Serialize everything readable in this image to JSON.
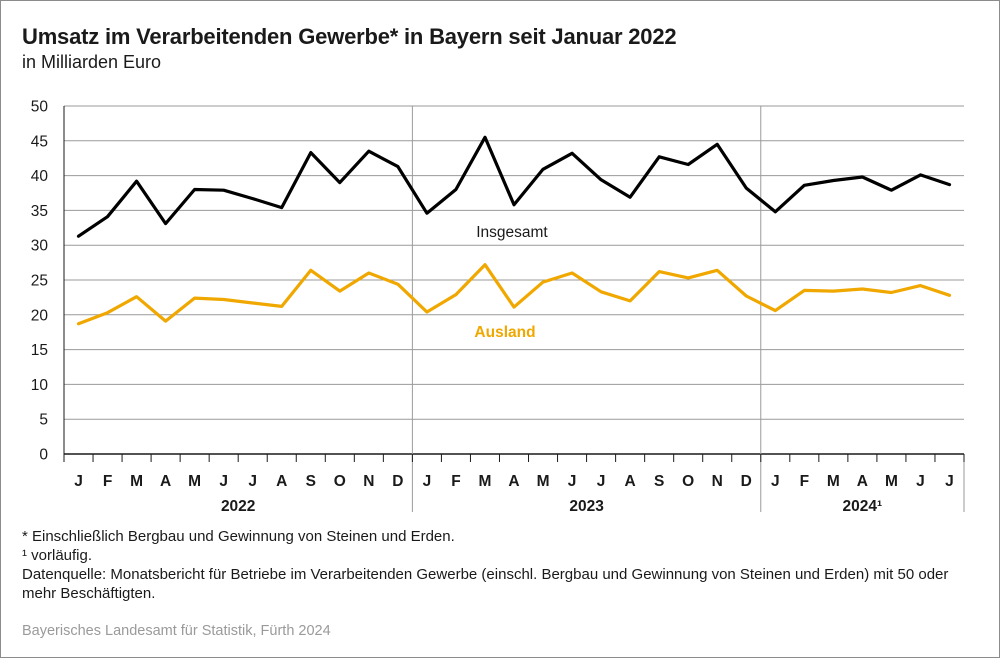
{
  "header": {
    "title": "Umsatz im Verarbeitenden Gewerbe* in Bayern seit Januar 2022",
    "subtitle": "in Milliarden Euro"
  },
  "footnotes": {
    "note1": "* Einschließlich Bergbau und Gewinnung von Steinen und Erden.",
    "note2": "¹  vorläufig.",
    "note3": "Datenquelle: Monatsbericht für Betriebe im Verarbeitenden Gewerbe (einschl. Bergbau und Gewinnung von Steinen und Erden) mit 50 oder mehr Beschäftigten."
  },
  "credit": "Bayerisches Landesamt für Statistik, Fürth 2024",
  "colors": {
    "insgesamt": "#000000",
    "ausland": "#f0a800",
    "grid": "#9a9a9a"
  },
  "chart_data": {
    "type": "line",
    "title": "Umsatz im Verarbeitenden Gewerbe* in Bayern seit Januar 2022",
    "subtitle": "in Milliarden Euro",
    "ylim": [
      0,
      50
    ],
    "yticks": [
      0,
      5,
      10,
      15,
      20,
      25,
      30,
      35,
      40,
      45,
      50
    ],
    "grid": true,
    "categories": [
      "J",
      "F",
      "M",
      "A",
      "M",
      "J",
      "J",
      "A",
      "S",
      "O",
      "N",
      "D",
      "J",
      "F",
      "M",
      "A",
      "M",
      "J",
      "J",
      "A",
      "S",
      "O",
      "N",
      "D",
      "J",
      "F",
      "M",
      "A",
      "M",
      "J",
      "J"
    ],
    "years": [
      {
        "label": "2022",
        "months": 12
      },
      {
        "label": "2023",
        "months": 12
      },
      {
        "label": "2024¹",
        "months": 7
      }
    ],
    "series": [
      {
        "name": "Insgesamt",
        "color": "#000000",
        "values": [
          31.3,
          34.1,
          39.2,
          33.1,
          38.0,
          37.9,
          36.7,
          35.4,
          43.3,
          39.0,
          43.5,
          41.3,
          34.6,
          38.0,
          45.5,
          35.8,
          40.9,
          43.2,
          39.4,
          36.9,
          42.7,
          41.6,
          44.5,
          38.2,
          34.8,
          38.6,
          39.3,
          39.8,
          37.9,
          40.1,
          38.7
        ]
      },
      {
        "name": "Ausland",
        "color": "#f0a800",
        "values": [
          18.7,
          20.3,
          22.6,
          19.1,
          22.4,
          22.2,
          21.7,
          21.2,
          26.4,
          23.4,
          26.0,
          24.4,
          20.4,
          22.9,
          27.2,
          21.1,
          24.7,
          26.0,
          23.3,
          22.0,
          26.2,
          25.3,
          26.4,
          22.7,
          20.6,
          23.5,
          23.4,
          23.7,
          23.2,
          24.2,
          22.8
        ]
      }
    ]
  }
}
